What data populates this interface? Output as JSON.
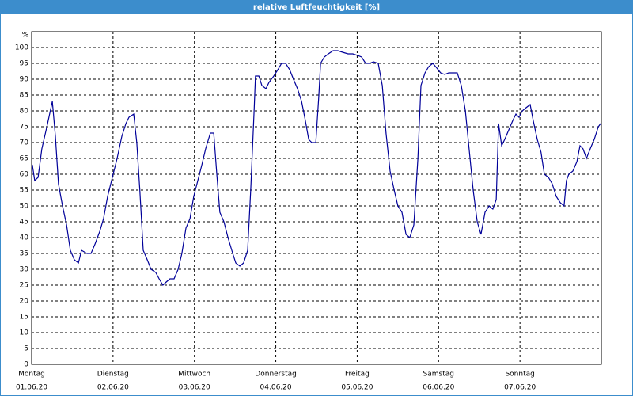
{
  "chart_data": {
    "type": "line",
    "title": "relative Luftfeuchtigkeit [%]",
    "y_label": "%",
    "color": "#000099",
    "grid": true,
    "xlim": [
      0,
      168
    ],
    "ylim": [
      0,
      105
    ],
    "xticks": [
      {
        "value": 0,
        "label": "Montag"
      },
      {
        "value": 24,
        "label": "Dienstag"
      },
      {
        "value": 48,
        "label": "Mittwoch"
      },
      {
        "value": 72,
        "label": "Donnerstag"
      },
      {
        "value": 96,
        "label": "Freitag"
      },
      {
        "value": 120,
        "label": "Samstag"
      },
      {
        "value": 144,
        "label": "Sonntag"
      }
    ],
    "xtick_dates": [
      "01.06.20",
      "02.06.20",
      "03.06.20",
      "04.06.20",
      "05.06.20",
      "06.06.20",
      "07.06.20"
    ],
    "yticks": [
      0,
      5,
      10,
      15,
      20,
      25,
      30,
      35,
      40,
      45,
      50,
      55,
      60,
      65,
      70,
      75,
      80,
      85,
      90,
      95,
      100
    ],
    "x": [
      0.2,
      0.9,
      1.9,
      3.0,
      4.7,
      6.1,
      7.0,
      7.9,
      9.1,
      10.3,
      11.4,
      12.6,
      13.8,
      14.7,
      16.3,
      17.5,
      18.7,
      20.1,
      21.2,
      22.4,
      23.8,
      25.2,
      26.6,
      27.8,
      28.7,
      30.1,
      31.0,
      31.9,
      32.9,
      34.1,
      35.2,
      36.6,
      37.6,
      38.7,
      39.7,
      40.8,
      42.0,
      43.2,
      44.3,
      45.5,
      46.7,
      47.8,
      49.0,
      50.2,
      51.3,
      52.7,
      53.7,
      54.6,
      55.5,
      56.7,
      57.9,
      59.3,
      60.2,
      61.4,
      62.5,
      63.7,
      64.6,
      65.6,
      66.0,
      67.0,
      67.9,
      69.1,
      70.0,
      71.4,
      72.6,
      73.7,
      74.9,
      76.1,
      77.2,
      78.4,
      79.6,
      80.7,
      81.7,
      82.6,
      83.8,
      84.7,
      85.2,
      86.3,
      87.5,
      88.9,
      90.3,
      91.7,
      93.3,
      94.7,
      96.1,
      97.3,
      98.5,
      99.6,
      100.8,
      102.2,
      103.4,
      104.5,
      105.7,
      106.9,
      108.0,
      109.2,
      110.4,
      111.5,
      112.7,
      113.9,
      114.8,
      116.0,
      117.1,
      118.3,
      119.5,
      120.6,
      121.8,
      123.0,
      124.1,
      125.5,
      126.7,
      127.9,
      129.0,
      130.2,
      131.4,
      132.5,
      133.7,
      134.9,
      136.0,
      137.0,
      137.7,
      138.6,
      139.5,
      140.7,
      141.9,
      142.8,
      143.7,
      144.7,
      145.8,
      147.0,
      147.9,
      149.1,
      150.2,
      151.2,
      152.4,
      153.5,
      154.7,
      155.9,
      157.0,
      157.7,
      158.4,
      159.6,
      160.8,
      161.7,
      162.6,
      163.6,
      164.7,
      165.9,
      167.1,
      167.8
    ],
    "values": [
      63,
      58,
      59,
      68,
      76,
      83,
      72,
      57,
      50,
      44,
      36,
      33,
      32,
      36,
      35,
      35,
      38,
      42,
      46,
      53,
      59,
      65,
      72,
      76,
      78,
      79,
      70,
      55,
      36,
      33,
      30,
      29,
      27,
      25,
      26,
      27,
      27,
      30,
      35,
      43,
      46,
      53,
      58,
      63,
      68,
      73,
      73,
      60,
      48,
      45,
      40,
      35,
      32,
      31,
      32,
      36,
      55,
      80,
      91,
      91,
      88,
      87,
      89,
      91,
      93,
      95,
      95,
      93,
      90,
      87,
      83,
      77,
      71,
      70,
      70,
      85,
      95,
      97,
      98,
      99,
      99,
      98.5,
      98,
      98,
      97.5,
      97,
      95,
      95,
      95.5,
      95,
      88,
      73,
      61,
      55,
      50,
      48,
      41,
      40,
      44,
      65,
      88,
      92,
      94,
      95,
      93.5,
      92,
      91.5,
      92,
      92,
      92,
      88,
      80,
      68,
      55,
      45,
      41,
      48,
      50,
      49,
      52,
      76,
      69,
      71,
      74,
      77,
      79,
      78,
      80,
      81,
      82,
      77,
      71,
      67,
      60,
      59,
      57,
      53,
      51,
      50,
      58,
      60,
      61,
      64,
      69,
      68,
      65,
      68,
      71,
      75,
      76
    ]
  }
}
